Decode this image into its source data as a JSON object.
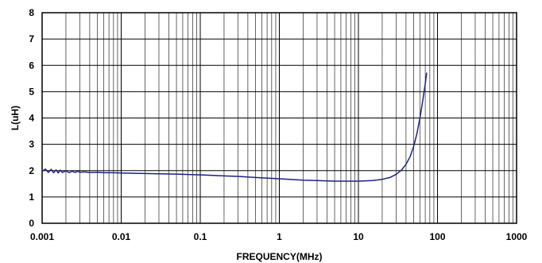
{
  "chart_data": {
    "type": "line",
    "xscale": "log",
    "xlim": [
      0.001,
      1000
    ],
    "ylim": [
      0,
      8
    ],
    "grid": true,
    "xlabel": "FREQUENCY(MHz)",
    "ylabel": "L(uH)",
    "xtick_labels": [
      "0.001",
      "0.01",
      "0.1",
      "1",
      "10",
      "100",
      "1000"
    ],
    "ytick_labels": [
      "0",
      "1",
      "2",
      "3",
      "4",
      "5",
      "6",
      "7",
      "8"
    ],
    "colors": {
      "line": "#1a237e",
      "grid": "#000000",
      "frame": "#000000"
    },
    "series": [
      {
        "x": [
          0.001,
          0.0011,
          0.0012,
          0.0013,
          0.0014,
          0.0015,
          0.0016,
          0.0017,
          0.0018,
          0.002,
          0.0022,
          0.0024,
          0.0026,
          0.0028,
          0.003,
          0.0035,
          0.004,
          0.005,
          0.006,
          0.008,
          0.01,
          0.015,
          0.02,
          0.03,
          0.05,
          0.1,
          0.2,
          0.3,
          0.5,
          1,
          2,
          3,
          5,
          8,
          10,
          15,
          20,
          25,
          30,
          35,
          40,
          45,
          50,
          55,
          60,
          65,
          70,
          73
        ],
        "y": [
          1.97,
          2.06,
          1.93,
          2.05,
          1.92,
          2.03,
          1.91,
          2.02,
          1.93,
          1.99,
          1.92,
          1.98,
          1.93,
          1.97,
          1.94,
          1.95,
          1.93,
          1.94,
          1.92,
          1.92,
          1.91,
          1.9,
          1.89,
          1.88,
          1.87,
          1.84,
          1.8,
          1.78,
          1.74,
          1.69,
          1.64,
          1.62,
          1.6,
          1.6,
          1.6,
          1.62,
          1.67,
          1.74,
          1.86,
          2.02,
          2.24,
          2.53,
          2.92,
          3.42,
          4.0,
          4.65,
          5.3,
          5.72
        ]
      }
    ]
  }
}
